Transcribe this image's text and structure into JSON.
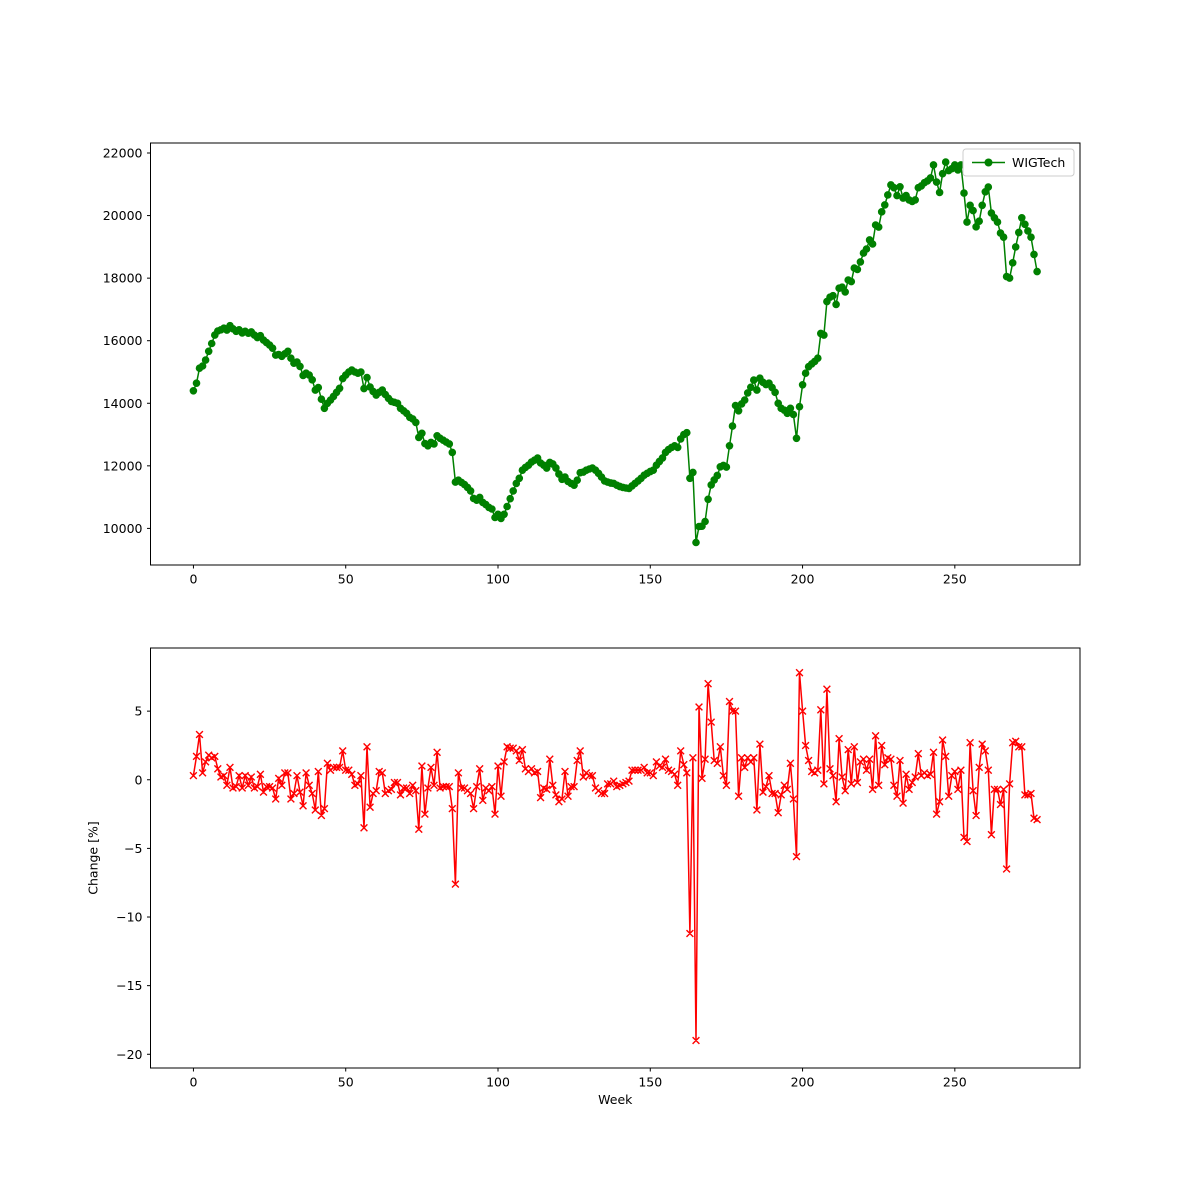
{
  "figure": {
    "background": "#ffffff"
  },
  "chart_data": [
    {
      "type": "line",
      "title": "",
      "xlabel": "",
      "ylabel": "",
      "legend": [
        {
          "label": "WIGTech",
          "color": "#008000",
          "marker": "o"
        }
      ],
      "legend_position": "upper right",
      "grid": false,
      "xlim": [
        -14.1,
        291.1
      ],
      "ylim": [
        8830,
        22320
      ],
      "xticks": [
        0,
        50,
        100,
        150,
        200,
        250
      ],
      "yticks": [
        10000,
        12000,
        14000,
        16000,
        18000,
        20000,
        22000
      ],
      "x_start": 0,
      "x_step": 1,
      "series": [
        {
          "name": "WIGTech",
          "color": "#008000",
          "marker": "o",
          "values": [
            14400,
            14640,
            15120,
            15190,
            15380,
            15660,
            15910,
            16180,
            16310,
            16350,
            16400,
            16340,
            16480,
            16380,
            16300,
            16350,
            16250,
            16300,
            16240,
            16280,
            16180,
            16100,
            16160,
            16020,
            15940,
            15860,
            15760,
            15540,
            15560,
            15500,
            15580,
            15660,
            15440,
            15280,
            15320,
            15180,
            14890,
            14960,
            14900,
            14750,
            14420,
            14500,
            14130,
            13840,
            14000,
            14100,
            14220,
            14350,
            14480,
            14790,
            14900,
            15000,
            15060,
            15000,
            14960,
            15000,
            14470,
            14820,
            14520,
            14380,
            14260,
            14350,
            14420,
            14280,
            14160,
            14060,
            14030,
            14000,
            13840,
            13760,
            13680,
            13550,
            13500,
            13390,
            12910,
            13040,
            12710,
            12640,
            12750,
            12700,
            12960,
            12880,
            12820,
            12760,
            12700,
            12430,
            11480,
            11540,
            11470,
            11400,
            11310,
            11200,
            10960,
            10900,
            10990,
            10830,
            10760,
            10670,
            10620,
            10350,
            10450,
            10320,
            10450,
            10700,
            10950,
            11200,
            11440,
            11600,
            11860,
            11950,
            12020,
            12120,
            12180,
            12250,
            12090,
            12020,
            11930,
            12110,
            12060,
            11930,
            11740,
            11570,
            11640,
            11500,
            11440,
            11380,
            11540,
            11780,
            11800,
            11860,
            11900,
            11930,
            11860,
            11760,
            11640,
            11520,
            11480,
            11450,
            11440,
            11380,
            11340,
            11310,
            11290,
            11280,
            11360,
            11440,
            11520,
            11600,
            11700,
            11760,
            11820,
            11860,
            12020,
            12140,
            12250,
            12430,
            12520,
            12590,
            12640,
            12590,
            12860,
            13000,
            13060,
            11600,
            11790,
            9550,
            10060,
            10070,
            10220,
            10930,
            11390,
            11550,
            11690,
            11970,
            12010,
            11960,
            12640,
            13270,
            13930,
            13760,
            13980,
            14100,
            14330,
            14510,
            14740,
            14420,
            14800,
            14670,
            14600,
            14640,
            14500,
            14350,
            14000,
            13840,
            13780,
            13680,
            13840,
            13640,
            12880,
            13890,
            14590,
            14960,
            15170,
            15260,
            15340,
            15440,
            16230,
            16180,
            17250,
            17390,
            17440,
            17160,
            17680,
            17710,
            17560,
            17940,
            17890,
            18320,
            18280,
            18520,
            18800,
            18930,
            19220,
            19090,
            19700,
            19630,
            20120,
            20340,
            20660,
            20980,
            20890,
            20640,
            20920,
            20560,
            20640,
            20500,
            20450,
            20500,
            20890,
            20950,
            21050,
            21110,
            21200,
            21620,
            21070,
            20740,
            21340,
            21710,
            21440,
            21500,
            21620,
            21460,
            21620,
            20720,
            19790,
            20330,
            20160,
            19640,
            19820,
            20330,
            20760,
            20910,
            20080,
            19930,
            19790,
            19440,
            19310,
            18050,
            18000,
            18490,
            19000,
            19460,
            19930,
            19720,
            19510,
            19310,
            18760,
            18210
          ]
        }
      ]
    },
    {
      "type": "line",
      "title": "",
      "xlabel": "Week",
      "ylabel": "Change [%]",
      "legend": [],
      "grid": false,
      "xlim": [
        -14.1,
        291.1
      ],
      "ylim": [
        -21.0,
        9.6
      ],
      "xticks": [
        0,
        50,
        100,
        150,
        200,
        250
      ],
      "yticks": [
        5,
        0,
        -5,
        -10,
        -15,
        -20
      ],
      "x_start": 0,
      "x_step": 1,
      "series": [
        {
          "name": "Change [%]",
          "color": "#ff0000",
          "marker": "x",
          "values": [
            0.3,
            1.7,
            3.3,
            0.5,
            1.3,
            1.8,
            1.6,
            1.7,
            0.8,
            0.2,
            0.3,
            -0.4,
            0.9,
            -0.6,
            -0.5,
            0.3,
            -0.6,
            0.3,
            -0.4,
            0.2,
            -0.6,
            -0.5,
            0.4,
            -0.9,
            -0.5,
            -0.5,
            -0.6,
            -1.4,
            0.1,
            -0.4,
            0.5,
            0.5,
            -1.4,
            -1.0,
            0.3,
            -0.9,
            -1.9,
            0.5,
            -0.4,
            -1.0,
            -2.2,
            0.6,
            -2.6,
            -2.1,
            1.2,
            0.7,
            0.9,
            0.9,
            0.9,
            2.1,
            0.7,
            0.7,
            0.4,
            -0.4,
            -0.3,
            0.3,
            -3.5,
            2.4,
            -2.0,
            -1.0,
            -0.8,
            0.6,
            0.5,
            -1.0,
            -0.8,
            -0.7,
            -0.2,
            -0.2,
            -1.1,
            -0.6,
            -0.6,
            -1.0,
            -0.4,
            -0.8,
            -3.6,
            1.0,
            -2.5,
            -0.6,
            0.9,
            -0.4,
            2.0,
            -0.6,
            -0.5,
            -0.5,
            -0.5,
            -2.1,
            -7.6,
            0.5,
            -0.6,
            -0.6,
            -0.8,
            -1.0,
            -2.1,
            -0.5,
            0.8,
            -1.5,
            -0.6,
            -0.8,
            -0.5,
            -2.5,
            1.0,
            -1.2,
            1.3,
            2.4,
            2.3,
            2.3,
            2.1,
            1.4,
            2.2,
            0.8,
            0.6,
            0.8,
            0.5,
            0.6,
            -1.3,
            -0.6,
            -0.7,
            1.5,
            -0.4,
            -1.1,
            -1.6,
            -1.4,
            0.6,
            -1.2,
            -0.5,
            -0.5,
            1.4,
            2.1,
            0.2,
            0.5,
            0.3,
            0.3,
            -0.6,
            -0.8,
            -1.0,
            -1.0,
            -0.3,
            -0.3,
            -0.1,
            -0.5,
            -0.4,
            -0.3,
            -0.2,
            -0.1,
            0.7,
            0.7,
            0.7,
            0.7,
            0.9,
            0.5,
            0.5,
            0.3,
            1.3,
            1.0,
            0.9,
            1.5,
            0.7,
            0.6,
            0.4,
            -0.4,
            2.1,
            1.1,
            0.5,
            -11.2,
            1.6,
            -19.0,
            5.3,
            0.1,
            1.5,
            7.0,
            4.2,
            1.4,
            1.2,
            2.4,
            0.3,
            -0.4,
            5.7,
            5.0,
            5.0,
            -1.2,
            1.6,
            0.9,
            1.6,
            1.3,
            1.6,
            -2.2,
            2.6,
            -0.9,
            -0.5,
            0.3,
            -1.0,
            -1.0,
            -2.4,
            -1.1,
            -0.4,
            -0.7,
            1.2,
            -1.4,
            -5.6,
            7.8,
            5.0,
            2.5,
            1.4,
            0.6,
            0.5,
            0.7,
            5.1,
            -0.3,
            6.6,
            0.8,
            0.3,
            -1.6,
            3.0,
            0.2,
            -0.8,
            2.2,
            -0.3,
            2.4,
            -0.2,
            1.3,
            1.5,
            0.7,
            1.5,
            -0.7,
            3.2,
            -0.4,
            2.5,
            1.1,
            1.6,
            1.5,
            -0.4,
            -1.2,
            1.4,
            -1.7,
            0.4,
            -0.7,
            -0.2,
            0.2,
            1.9,
            0.3,
            0.5,
            0.3,
            0.4,
            2.0,
            -2.5,
            -1.6,
            2.9,
            1.7,
            -1.2,
            0.3,
            0.6,
            -0.7,
            0.7,
            -4.2,
            -4.5,
            2.7,
            -0.8,
            -2.6,
            0.9,
            2.6,
            2.1,
            0.7,
            -4.0,
            -0.7,
            -0.7,
            -1.8,
            -0.7,
            -6.5,
            -0.3,
            2.7,
            2.8,
            2.4,
            2.4,
            -1.1,
            -1.1,
            -1.0,
            -2.8,
            -2.9
          ]
        }
      ]
    }
  ]
}
